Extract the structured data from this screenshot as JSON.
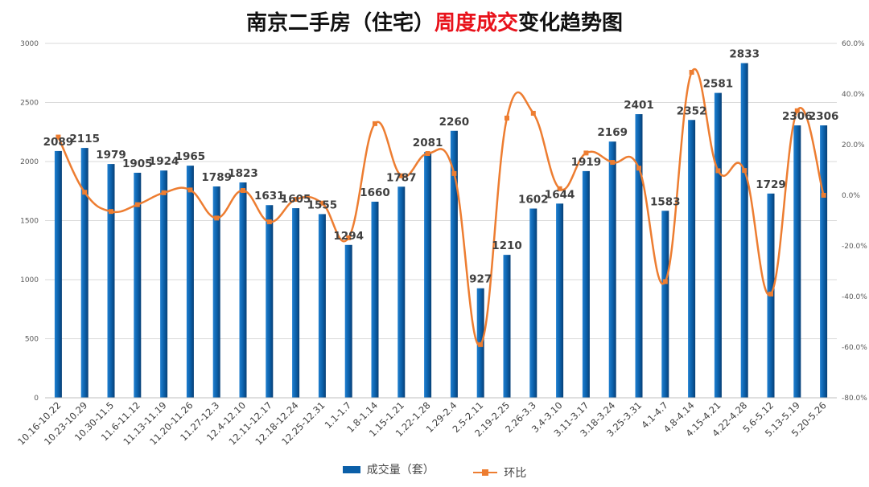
{
  "title": {
    "part1": "南京二手房（住宅）",
    "part2": "周度成交",
    "part3": "变化趋势图"
  },
  "legend": {
    "bars": "成交量（套）",
    "line": "环比"
  },
  "colors": {
    "bar": "#0b5fa8",
    "line": "#ed7d31",
    "title_red": "#e8121b"
  },
  "chart_data": {
    "type": "bar",
    "title": "南京二手房（住宅）周度成交变化趋势图",
    "categories": [
      "10.16-10.22",
      "10.23-10.29",
      "10.30-11.5",
      "11.6-11.12",
      "11.13-11.19",
      "11.20-11.26",
      "11.27-12.3",
      "12.4-12.10",
      "12.11-12.17",
      "12.18-12.24",
      "12.25-12.31",
      "1.1-1.7",
      "1.8-1.14",
      "1.15-1.21",
      "1.22-1.28",
      "1.29-2.4",
      "2.5-2.11",
      "2.19-2.25",
      "2.26-3.3",
      "3.4-3.10",
      "3.11-3.17",
      "3.18-3.24",
      "3.25-3.31",
      "4.1-4.7",
      "4.8-4.14",
      "4.15-4.21",
      "4.22-4.28",
      "5.6-5.12",
      "5.13-5.19",
      "5.20-5.26"
    ],
    "series": [
      {
        "name": "成交量（套）",
        "type": "bar",
        "axis": "left",
        "values": [
          2089,
          2115,
          1979,
          1905,
          1924,
          1965,
          1789,
          1823,
          1631,
          1605,
          1555,
          1294,
          1660,
          1787,
          2081,
          2260,
          927,
          1210,
          1602,
          1644,
          1919,
          2169,
          2401,
          1583,
          2352,
          2581,
          2833,
          1729,
          2306,
          2306
        ]
      },
      {
        "name": "环比",
        "type": "line",
        "axis": "right",
        "unit": "%",
        "values": [
          23.0,
          1.2,
          -6.4,
          -3.7,
          1.0,
          2.1,
          -9.0,
          1.9,
          -10.5,
          -1.6,
          -3.1,
          -16.8,
          28.3,
          7.7,
          16.5,
          8.6,
          -59.0,
          30.5,
          32.4,
          2.6,
          16.7,
          13.0,
          10.7,
          -34.1,
          48.6,
          9.7,
          9.8,
          -39.0,
          33.4,
          0.0
        ]
      }
    ],
    "y_left": {
      "min": 0,
      "max": 3000,
      "step": 500,
      "ticks": [
        "0",
        "500",
        "1000",
        "1500",
        "2000",
        "2500",
        "3000"
      ]
    },
    "y_right": {
      "min": -80,
      "max": 60,
      "step": 20,
      "ticks": [
        "-80.0%",
        "-60.0%",
        "-40.0%",
        "-20.0%",
        "0.0%",
        "20.0%",
        "40.0%",
        "60.0%"
      ]
    },
    "grid": true,
    "legend_position": "bottom"
  }
}
